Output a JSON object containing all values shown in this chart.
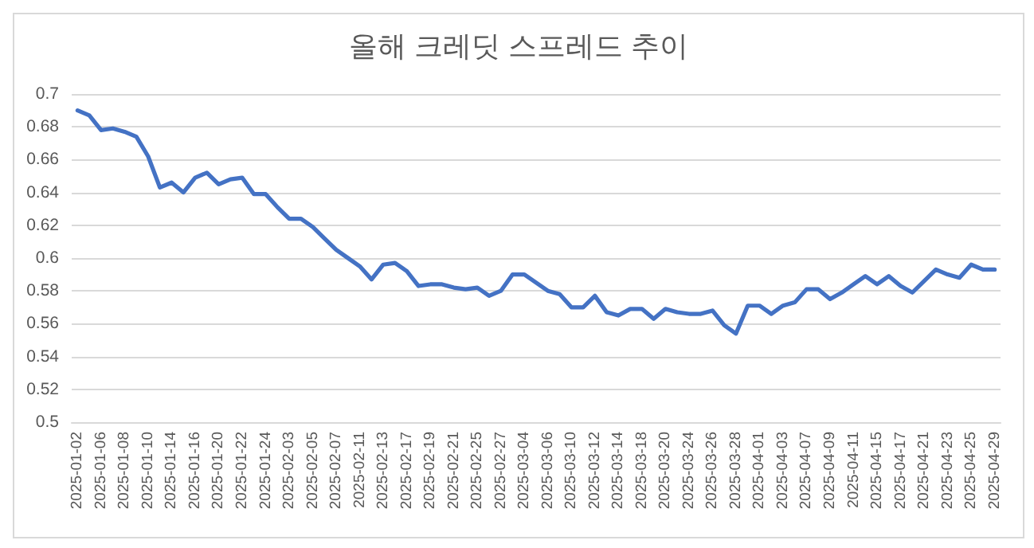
{
  "chart_data": {
    "type": "line",
    "title": "올해 크레딧 스프레드 추이",
    "categories": [
      "2025-01-02",
      null,
      "2025-01-06",
      null,
      "2025-01-08",
      null,
      "2025-01-10",
      null,
      "2025-01-14",
      null,
      "2025-01-16",
      null,
      "2025-01-20",
      null,
      "2025-01-22",
      null,
      "2025-01-24",
      null,
      "2025-02-03",
      null,
      "2025-02-05",
      null,
      "2025-02-07",
      null,
      "2025-02-11",
      null,
      "2025-02-13",
      null,
      "2025-02-17",
      null,
      "2025-02-19",
      null,
      "2025-02-21",
      null,
      "2025-02-25",
      null,
      "2025-02-27",
      null,
      "2025-03-04",
      null,
      "2025-03-06",
      null,
      "2025-03-10",
      null,
      "2025-03-12",
      null,
      "2025-03-14",
      null,
      "2025-03-18",
      null,
      "2025-03-20",
      null,
      "2025-03-24",
      null,
      "2025-03-26",
      null,
      "2025-03-28",
      null,
      "2025-04-01",
      null,
      "2025-04-03",
      null,
      "2025-04-07",
      null,
      "2025-04-09",
      null,
      "2025-04-11",
      null,
      "2025-04-15",
      null,
      "2025-04-17",
      null,
      "2025-04-21",
      null,
      "2025-04-23",
      null,
      "2025-04-25",
      null,
      "2025-04-29"
    ],
    "series": [
      {
        "color": "#4472c4",
        "values": [
          0.69,
          0.687,
          0.678,
          0.679,
          0.677,
          0.674,
          0.662,
          0.643,
          0.646,
          0.64,
          0.649,
          0.652,
          0.645,
          0.648,
          0.649,
          0.639,
          0.639,
          0.631,
          0.624,
          0.624,
          0.619,
          0.612,
          0.605,
          0.6,
          0.595,
          0.587,
          0.596,
          0.597,
          0.592,
          0.583,
          0.584,
          0.584,
          0.582,
          0.581,
          0.582,
          0.577,
          0.58,
          0.59,
          0.59,
          0.585,
          0.58,
          0.578,
          0.57,
          0.57,
          0.577,
          0.567,
          0.565,
          0.569,
          0.569,
          0.563,
          0.569,
          0.567,
          0.566,
          0.566,
          0.568,
          0.559,
          0.554,
          0.571,
          0.571,
          0.566,
          0.571,
          0.573,
          0.581,
          0.581,
          0.575,
          0.579,
          0.584,
          0.589,
          0.584,
          0.589,
          0.583,
          0.579,
          0.586,
          0.593,
          0.59,
          0.588,
          0.596,
          0.593,
          0.593
        ]
      }
    ],
    "ylim": [
      0.5,
      0.7
    ],
    "yticks": [
      0.5,
      0.52,
      0.54,
      0.56,
      0.58,
      0.6,
      0.62,
      0.64,
      0.66,
      0.68,
      0.7
    ],
    "grid": "y",
    "marker": "none",
    "line_style": "solid"
  }
}
